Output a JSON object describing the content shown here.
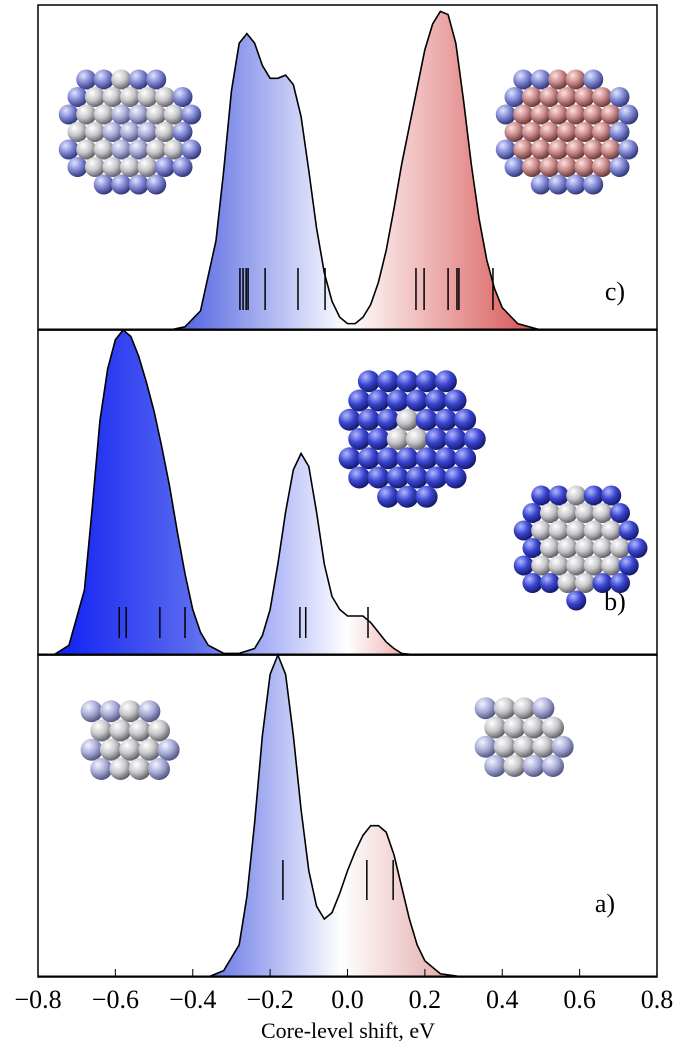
{
  "chart_data": [
    {
      "type": "area",
      "label": "c)",
      "ylim": [
        0,
        1.02
      ],
      "x": [
        -0.46,
        -0.42,
        -0.38,
        -0.34,
        -0.32,
        -0.3,
        -0.28,
        -0.26,
        -0.24,
        -0.22,
        -0.2,
        -0.18,
        -0.16,
        -0.14,
        -0.12,
        -0.1,
        -0.08,
        -0.06,
        -0.04,
        -0.02,
        0.0,
        0.02,
        0.04,
        0.06,
        0.08,
        0.1,
        0.12,
        0.14,
        0.16,
        0.18,
        0.2,
        0.22,
        0.24,
        0.26,
        0.28,
        0.3,
        0.32,
        0.34,
        0.36,
        0.38,
        0.4,
        0.44,
        0.5
      ],
      "values": [
        0,
        0.01,
        0.06,
        0.28,
        0.5,
        0.75,
        0.9,
        0.93,
        0.9,
        0.83,
        0.79,
        0.79,
        0.8,
        0.77,
        0.67,
        0.5,
        0.32,
        0.18,
        0.09,
        0.04,
        0.02,
        0.02,
        0.04,
        0.08,
        0.15,
        0.25,
        0.38,
        0.52,
        0.64,
        0.76,
        0.88,
        0.96,
        1.0,
        0.99,
        0.9,
        0.72,
        0.52,
        0.35,
        0.22,
        0.13,
        0.07,
        0.02,
        0
      ],
      "lines": [
        -0.278,
        -0.27,
        -0.262,
        -0.257,
        -0.213,
        -0.128,
        -0.058,
        0.177,
        0.198,
        0.26,
        0.283,
        0.288,
        0.376
      ]
    },
    {
      "type": "area",
      "label": "b)",
      "ylim": [
        0,
        1.0
      ],
      "x": [
        -0.76,
        -0.72,
        -0.68,
        -0.66,
        -0.64,
        -0.62,
        -0.6,
        -0.58,
        -0.56,
        -0.54,
        -0.52,
        -0.5,
        -0.48,
        -0.46,
        -0.44,
        -0.42,
        -0.4,
        -0.38,
        -0.36,
        -0.32,
        -0.28,
        -0.24,
        -0.22,
        -0.2,
        -0.18,
        -0.16,
        -0.14,
        -0.12,
        -0.1,
        -0.08,
        -0.06,
        -0.04,
        -0.02,
        0.0,
        0.02,
        0.04,
        0.06,
        0.08,
        0.1,
        0.12,
        0.14,
        0.18
      ],
      "values": [
        0,
        0.03,
        0.2,
        0.45,
        0.72,
        0.88,
        0.97,
        1.0,
        0.98,
        0.92,
        0.84,
        0.75,
        0.64,
        0.52,
        0.38,
        0.25,
        0.14,
        0.07,
        0.03,
        0.005,
        0.005,
        0.02,
        0.06,
        0.14,
        0.28,
        0.44,
        0.57,
        0.62,
        0.58,
        0.44,
        0.28,
        0.18,
        0.14,
        0.12,
        0.12,
        0.12,
        0.1,
        0.07,
        0.04,
        0.02,
        0.005,
        0
      ],
      "lines": [
        -0.59,
        -0.572,
        -0.485,
        -0.42,
        -0.123,
        -0.108,
        0.053
      ]
    },
    {
      "type": "area",
      "label": "a)",
      "ylim": [
        0,
        1.0
      ],
      "x": [
        -0.36,
        -0.32,
        -0.28,
        -0.26,
        -0.24,
        -0.22,
        -0.2,
        -0.18,
        -0.16,
        -0.14,
        -0.12,
        -0.1,
        -0.08,
        -0.06,
        -0.04,
        -0.02,
        0.0,
        0.02,
        0.04,
        0.06,
        0.08,
        0.1,
        0.12,
        0.14,
        0.16,
        0.18,
        0.2,
        0.24,
        0.3
      ],
      "values": [
        0,
        0.02,
        0.1,
        0.25,
        0.48,
        0.75,
        0.94,
        1.0,
        0.94,
        0.75,
        0.52,
        0.33,
        0.22,
        0.18,
        0.2,
        0.26,
        0.33,
        0.39,
        0.44,
        0.47,
        0.47,
        0.45,
        0.38,
        0.28,
        0.18,
        0.1,
        0.05,
        0.01,
        0
      ],
      "lines": [
        -0.167,
        0.05,
        0.118
      ],
      "xlim": [
        -0.8,
        0.8
      ],
      "xticks": [
        {
          "value": -0.8,
          "label": "−0.8"
        },
        {
          "value": -0.6,
          "label": "−0.6"
        },
        {
          "value": -0.4,
          "label": "−0.4"
        },
        {
          "value": -0.2,
          "label": "−0.2"
        },
        {
          "value": 0.0,
          "label": "0.0"
        },
        {
          "value": 0.2,
          "label": "0.2"
        },
        {
          "value": 0.4,
          "label": "0.4"
        },
        {
          "value": 0.6,
          "label": "0.6"
        },
        {
          "value": 0.8,
          "label": "0.8"
        }
      ],
      "xlabel": "Core-level shift, eV"
    }
  ]
}
